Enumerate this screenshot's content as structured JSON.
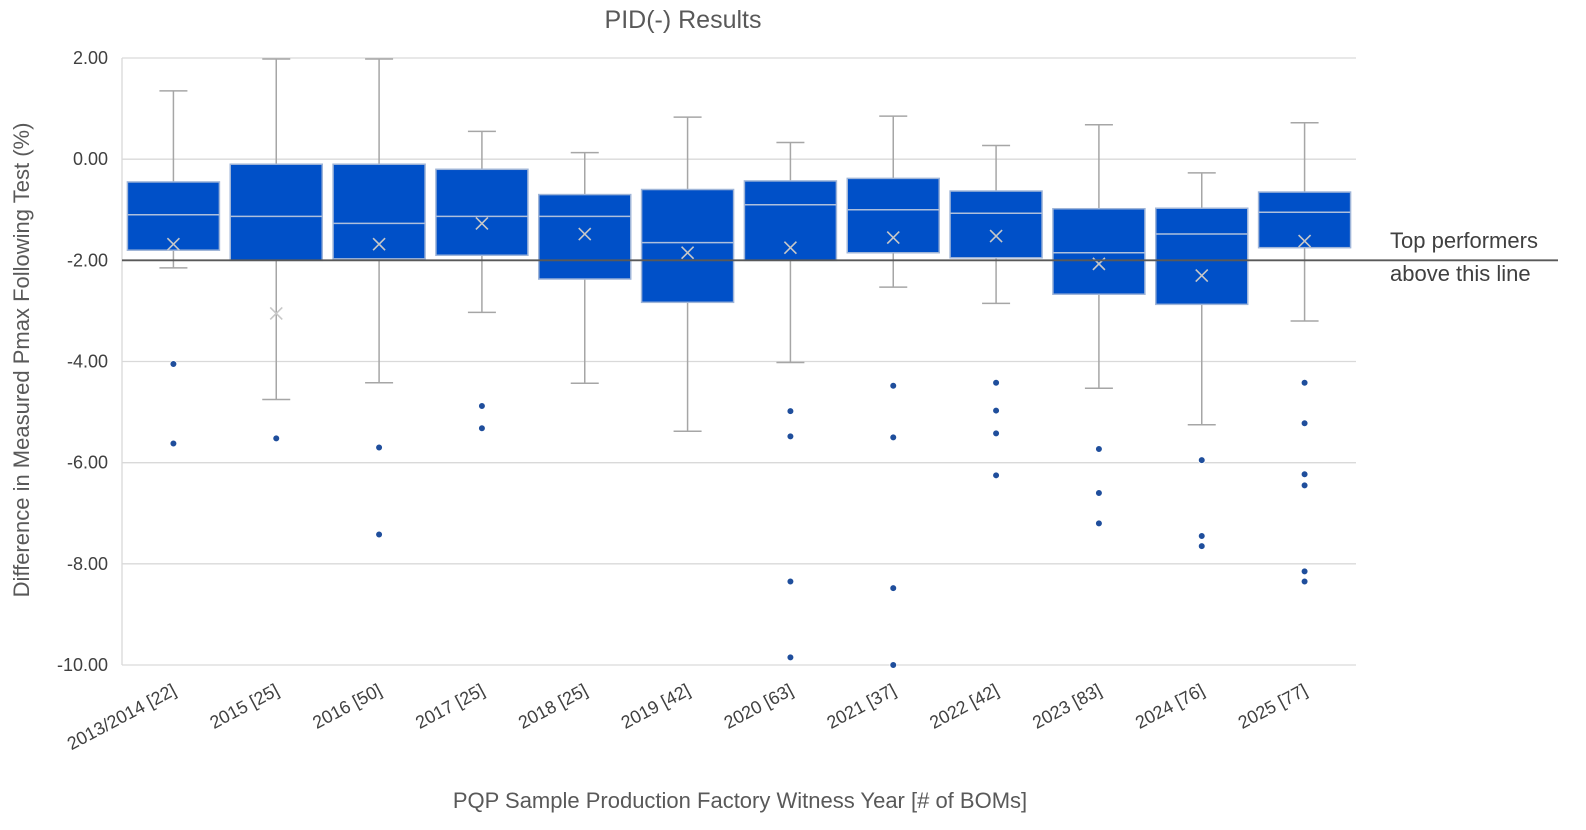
{
  "chart_data": {
    "type": "boxplot",
    "title": "PID(-) Results",
    "xlabel": "PQP Sample Production Factory Witness Year [# of BOMs]",
    "ylabel": "Difference in Measured Pmax Following Test (%)",
    "ylim": [
      -10,
      2
    ],
    "yticks": [
      2,
      0,
      -2,
      -4,
      -6,
      -8,
      -10
    ],
    "ytick_labels": [
      "2.00",
      "0.00",
      "-2.00",
      "-4.00",
      "-6.00",
      "-8.00",
      "-10.00"
    ],
    "grid": true,
    "box_color": "#0050c8",
    "whisker_color": "#a6a6a6",
    "outlier_color": "#1f4e9c",
    "reference_line": {
      "y": -2.0,
      "label_lines": [
        "Top performers",
        "above this line"
      ],
      "color": "#595959"
    },
    "categories": [
      "2013/2014 [22]",
      "2015 [25]",
      "2016 [50]",
      "2017 [25]",
      "2018 [25]",
      "2019 [42]",
      "2020 [63]",
      "2021 [37]",
      "2022 [42]",
      "2023 [83]",
      "2024 [76]",
      "2025 [77]"
    ],
    "boxes": [
      {
        "whisker_low": -2.15,
        "q1": -1.8,
        "median": -1.1,
        "q3": -0.45,
        "whisker_high": 1.35,
        "mean": -1.68,
        "outliers": [
          -4.05,
          -5.62
        ]
      },
      {
        "whisker_low": -4.75,
        "q1": -2.0,
        "median": -1.13,
        "q3": -0.1,
        "whisker_high": 1.98,
        "mean": -3.05,
        "outliers": [
          -5.52
        ]
      },
      {
        "whisker_low": -4.42,
        "q1": -1.97,
        "median": -1.27,
        "q3": -0.1,
        "whisker_high": 1.98,
        "mean": -1.68,
        "outliers": [
          -5.7,
          -7.42
        ]
      },
      {
        "whisker_low": -3.03,
        "q1": -1.9,
        "median": -1.13,
        "q3": -0.2,
        "whisker_high": 0.55,
        "mean": -1.27,
        "outliers": [
          -4.88,
          -5.32
        ]
      },
      {
        "whisker_low": -4.43,
        "q1": -2.37,
        "median": -1.13,
        "q3": -0.7,
        "whisker_high": 0.13,
        "mean": -1.48,
        "outliers": []
      },
      {
        "whisker_low": -5.38,
        "q1": -2.83,
        "median": -1.65,
        "q3": -0.6,
        "whisker_high": 0.83,
        "mean": -1.85,
        "outliers": []
      },
      {
        "whisker_low": -4.02,
        "q1": -2.0,
        "median": -0.9,
        "q3": -0.43,
        "whisker_high": 0.33,
        "mean": -1.75,
        "outliers": [
          -4.98,
          -5.48,
          -8.35,
          -9.85
        ]
      },
      {
        "whisker_low": -2.53,
        "q1": -1.85,
        "median": -1.0,
        "q3": -0.38,
        "whisker_high": 0.85,
        "mean": -1.55,
        "outliers": [
          -4.48,
          -5.5,
          -8.48,
          -10.0
        ]
      },
      {
        "whisker_low": -2.85,
        "q1": -1.95,
        "median": -1.07,
        "q3": -0.63,
        "whisker_high": 0.27,
        "mean": -1.52,
        "outliers": [
          -4.42,
          -4.97,
          -5.42,
          -6.25
        ]
      },
      {
        "whisker_low": -4.53,
        "q1": -2.67,
        "median": -1.85,
        "q3": -0.98,
        "whisker_high": 0.68,
        "mean": -2.07,
        "outliers": [
          -5.73,
          -6.6,
          -7.2
        ]
      },
      {
        "whisker_low": -5.25,
        "q1": -2.87,
        "median": -1.48,
        "q3": -0.97,
        "whisker_high": -0.27,
        "mean": -2.3,
        "outliers": [
          -5.95,
          -7.45,
          -7.65
        ]
      },
      {
        "whisker_low": -3.2,
        "q1": -1.75,
        "median": -1.05,
        "q3": -0.65,
        "whisker_high": 0.72,
        "mean": -1.62,
        "outliers": [
          -4.42,
          -5.22,
          -6.23,
          -6.45,
          -8.15,
          -8.35
        ]
      }
    ]
  }
}
